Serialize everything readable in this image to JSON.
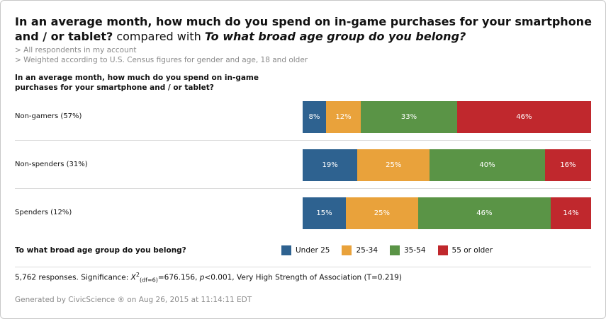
{
  "title": {
    "part1": "In an average month, how much do you spend on in-game purchases for your smartphone and / or tablet?",
    "mid": " compared with ",
    "part2": "To what broad age group do you belong?"
  },
  "filters": [
    "> All respondents in my account",
    "> Weighted according to U.S. Census figures for gender and age, 18 and older"
  ],
  "question_label": "In an average month, how much do you spend on in-game purchases for your smartphone and / or tablet?",
  "legend_title": "To what broad age group do you belong?",
  "footnote": {
    "prefix": "5,762 responses. Significance: ",
    "chi": "X",
    "sup": "2",
    "sub": "(df=6)",
    "stat": "=676.156, ",
    "p": "p",
    "rest": "<0.001, Very High Strength of Association (T=0.219)"
  },
  "generated": "Generated by CivicScience ® on Aug 26, 2015 at 11:14:11 EDT",
  "colors": {
    "under25": "#2e6290",
    "25-34": "#e9a23b",
    "35-54": "#5a9446",
    "55plus": "#c0282d"
  },
  "chart_data": {
    "type": "bar",
    "stacked": true,
    "orientation": "horizontal",
    "normalized": true,
    "categories": [
      "Non-gamers (57%)",
      "Non-spenders (31%)",
      "Spenders (12%)"
    ],
    "series": [
      {
        "name": "Under 25",
        "values": [
          8,
          19,
          15
        ],
        "labels": [
          "8%",
          "19%",
          "15%"
        ],
        "color": "#2e6290"
      },
      {
        "name": "25-34",
        "values": [
          12,
          25,
          25
        ],
        "labels": [
          "12%",
          "25%",
          "25%"
        ],
        "color": "#e9a23b"
      },
      {
        "name": "35-54",
        "values": [
          33,
          40,
          46
        ],
        "labels": [
          "33%",
          "40%",
          "46%"
        ],
        "color": "#5a9446"
      },
      {
        "name": "55 or older",
        "values": [
          46,
          16,
          14
        ],
        "labels": [
          "46%",
          "16%",
          "14%"
        ],
        "color": "#c0282d"
      }
    ],
    "legend_position": "bottom"
  }
}
